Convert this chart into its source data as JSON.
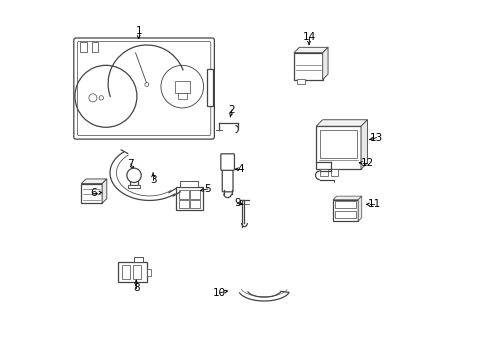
{
  "background_color": "#ffffff",
  "line_color": "#444444",
  "fig_width": 4.89,
  "fig_height": 3.6,
  "dpi": 100,
  "label_positions": {
    "1": [
      0.205,
      0.915,
      0.205,
      0.892
    ],
    "2": [
      0.465,
      0.695,
      0.46,
      0.675
    ],
    "3": [
      0.245,
      0.5,
      0.245,
      0.52
    ],
    "4": [
      0.49,
      0.53,
      0.472,
      0.53
    ],
    "5": [
      0.398,
      0.475,
      0.375,
      0.47
    ],
    "6": [
      0.078,
      0.465,
      0.105,
      0.465
    ],
    "7": [
      0.183,
      0.545,
      0.192,
      0.527
    ],
    "8": [
      0.198,
      0.2,
      0.198,
      0.222
    ],
    "9": [
      0.48,
      0.435,
      0.497,
      0.432
    ],
    "10": [
      0.43,
      0.185,
      0.463,
      0.193
    ],
    "11": [
      0.862,
      0.432,
      0.83,
      0.432
    ],
    "12": [
      0.842,
      0.548,
      0.81,
      0.548
    ],
    "13": [
      0.868,
      0.618,
      0.84,
      0.61
    ],
    "14": [
      0.68,
      0.9,
      0.68,
      0.876
    ]
  }
}
